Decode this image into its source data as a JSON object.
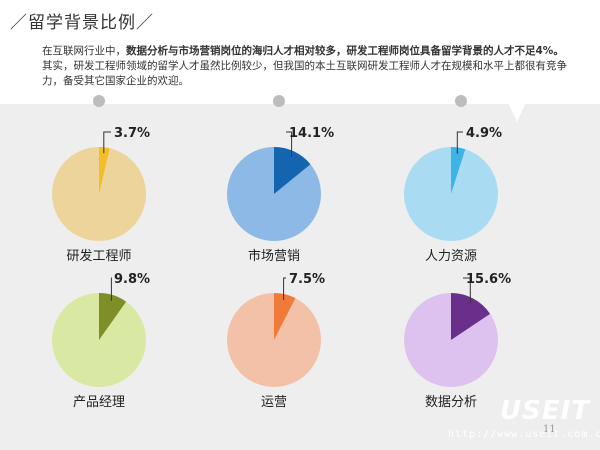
{
  "title": "／留学背景比例／",
  "intro": {
    "p1": "在互联网行业中，",
    "p2": "数据分析与市场营销岗位的海归人才相对较多，研发工程师岗位具备留学背景的人才不足4%。",
    "p3": "其实，研发工程师领域的留学人才虽然比例较少，但我国的本土互联网研发工程师人才在规模和水平上都很有竞争力，备受其它国家企业的欢迎。"
  },
  "chart_data": [
    {
      "type": "pie",
      "title": "研发工程师",
      "value": 3.7,
      "label": "3.7%",
      "colors": {
        "base": "#edd49b",
        "slice": "#f2bf2b"
      }
    },
    {
      "type": "pie",
      "title": "市场营销",
      "value": 14.1,
      "label": "14.1%",
      "colors": {
        "base": "#8cb9e6",
        "slice": "#1465b0"
      }
    },
    {
      "type": "pie",
      "title": "人力资源",
      "value": 4.9,
      "label": "4.9%",
      "colors": {
        "base": "#a9dcf2",
        "slice": "#3db3e6"
      }
    },
    {
      "type": "pie",
      "title": "产品经理",
      "value": 9.8,
      "label": "9.8%",
      "colors": {
        "base": "#d9e8a3",
        "slice": "#7f8f28"
      }
    },
    {
      "type": "pie",
      "title": "运营",
      "value": 7.5,
      "label": "7.5%",
      "colors": {
        "base": "#f2c1a8",
        "slice": "#f07a3a"
      }
    },
    {
      "type": "pie",
      "title": "数据分析",
      "value": 15.6,
      "label": "15.6%",
      "colors": {
        "base": "#ddc1ee",
        "slice": "#6a2f8a"
      }
    }
  ],
  "page_number": "11",
  "watermark": {
    "logo": "USEIT",
    "url": "http://www.useit.com.cn"
  }
}
